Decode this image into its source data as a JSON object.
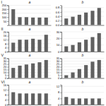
{
  "chart_data": [
    {
      "type": "bar",
      "title": "I",
      "subtitle": "a",
      "categories": [
        null,
        null,
        null,
        null,
        null,
        null
      ],
      "values": [
        200,
        100,
        100,
        95,
        95,
        95
      ],
      "color": "#606060",
      "ylim": [
        0,
        250
      ],
      "yticks": [
        50,
        100,
        150,
        200,
        250
      ],
      "grid": true,
      "tick_labels": "y"
    },
    {
      "type": "bar",
      "subtitle": "b",
      "categories": [
        null,
        null,
        null,
        null,
        null,
        null
      ],
      "values": [
        0.3,
        0.38,
        0.47,
        0.57,
        0.65,
        0.78
      ],
      "color": "#606060",
      "ylim": [
        0.0,
        0.9
      ],
      "yticks": [
        {
          "value": 0.0,
          "label": "0.0"
        },
        0.2,
        0.4,
        0.6,
        0.8
      ],
      "grid": true,
      "tick_labels": "y"
    },
    {
      "type": "bar",
      "title": "II",
      "subtitle": "a",
      "categories": [
        null,
        null,
        null,
        null,
        null,
        null
      ],
      "values": [
        9,
        12,
        12,
        13,
        12,
        17
      ],
      "color": "#606060",
      "ylim": [
        0,
        20
      ],
      "yticks": [
        0,
        4,
        8,
        12,
        16,
        20
      ],
      "grid": true,
      "tick_labels": "y"
    },
    {
      "type": "bar",
      "subtitle": "b",
      "categories": [
        null,
        null,
        null,
        null,
        null,
        null
      ],
      "values": [
        8,
        10,
        14,
        18,
        22,
        28
      ],
      "color": "#606060",
      "ylim": [
        0,
        30
      ],
      "yticks": [
        0,
        10,
        20,
        30
      ],
      "grid": true,
      "tick_labels": "y"
    },
    {
      "type": "bar",
      "title": "V",
      "subtitle": "a",
      "categories": [
        null,
        null,
        null,
        null,
        null,
        null
      ],
      "values": [
        18,
        22,
        24,
        26,
        28,
        32
      ],
      "color": "#606060",
      "ylim": [
        0,
        35
      ],
      "yticks": [
        0,
        5,
        10,
        15,
        20,
        25,
        30,
        35
      ],
      "grid": true,
      "tick_labels": "y"
    },
    {
      "type": "bar",
      "subtitle": "b",
      "categories": [
        null,
        null,
        null,
        null,
        null,
        null
      ],
      "values": [
        5,
        10,
        16,
        23,
        29,
        32
      ],
      "color": "#606060",
      "ylim": [
        0,
        35
      ],
      "yticks": [
        0,
        5,
        10,
        15,
        20,
        25,
        30,
        35
      ],
      "grid": true,
      "tick_labels": "y"
    },
    {
      "type": "bar",
      "title": "VI",
      "subtitle": "a",
      "categories": [
        null,
        null,
        null,
        null,
        null,
        null
      ],
      "values": [
        10,
        9,
        9,
        9,
        9,
        9
      ],
      "color": "#606060",
      "ylim": [
        0,
        16
      ],
      "yticks": [
        0,
        4,
        8,
        12,
        16
      ],
      "grid": true,
      "tick_labels": "y"
    },
    {
      "type": "bar",
      "subtitle": "b",
      "categories": [
        null,
        null,
        null,
        null,
        null,
        null
      ],
      "values": [
        5,
        4,
        4,
        4,
        4,
        4
      ],
      "color": "#606060",
      "ylim": [
        0,
        13
      ],
      "yticks": [
        0,
        4,
        8,
        12
      ],
      "grid": true,
      "tick_labels": "y"
    }
  ]
}
